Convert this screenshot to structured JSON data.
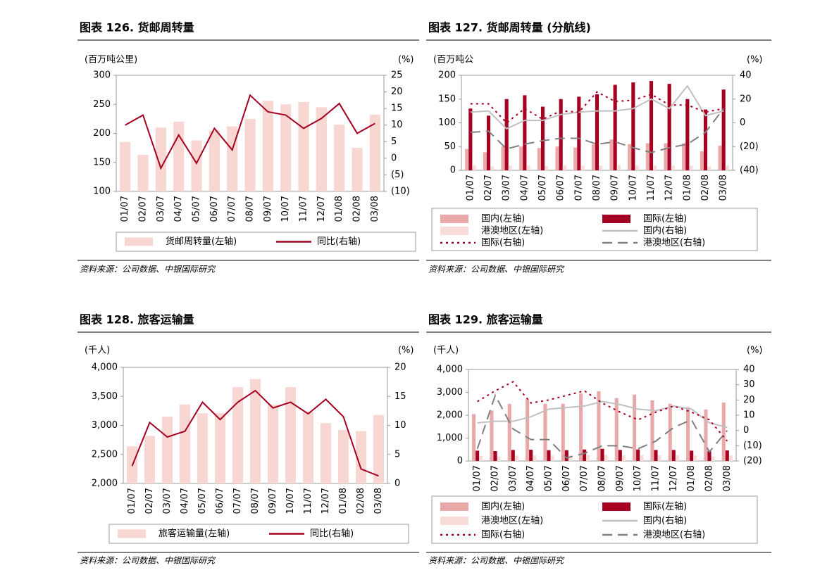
{
  "chart_data": [
    {
      "type": "bar",
      "title": "图表 126. 货邮周转量",
      "unit_left": "(百万吨公里)",
      "unit_right": "(%)",
      "source": "资料来源：公司数据、中银国际研究",
      "categories": [
        "01/07",
        "02/07",
        "03/07",
        "04/07",
        "05/07",
        "06/07",
        "07/07",
        "08/07",
        "09/07",
        "10/07",
        "11/07",
        "12/07",
        "01/08",
        "02/08",
        "03/08"
      ],
      "ylim": [
        100,
        300
      ],
      "yticks": [
        100,
        150,
        200,
        250,
        300
      ],
      "y2lim": [
        -10,
        25
      ],
      "y2ticks": [
        {
          "value": -10,
          "label": "(10)"
        },
        {
          "value": -5,
          "label": "(5)"
        },
        0,
        5,
        10,
        15,
        20,
        25
      ],
      "series": [
        {
          "name": "货邮周转量(左轴)",
          "type": "bar",
          "color": "#f8d7d3",
          "values": [
            185,
            163,
            210,
            220,
            188,
            205,
            212,
            225,
            256,
            250,
            254,
            245,
            215,
            175,
            232
          ]
        },
        {
          "name": "同比(右轴)",
          "type": "line",
          "axis": "y2",
          "color": "#a50021",
          "values": [
            10,
            13,
            -3,
            7,
            -1.5,
            9,
            2.5,
            19,
            14,
            13,
            9,
            12,
            16.5,
            7.5,
            10.5
          ]
        }
      ]
    },
    {
      "type": "bar",
      "title": "图表 127. 货邮周转量 (分航线)",
      "unit_left": "(百万吨公",
      "unit_right": "(%)",
      "source": "资料来源：公司数据、中银国际研究",
      "categories": [
        "01/07",
        "02/07",
        "03/07",
        "04/07",
        "05/07",
        "06/07",
        "07/07",
        "08/07",
        "09/07",
        "10/07",
        "11/07",
        "12/07",
        "01/08",
        "02/08",
        "03/08"
      ],
      "ylim": [
        0,
        200
      ],
      "yticks": [
        0,
        50,
        100,
        150,
        200
      ],
      "y2lim": [
        -40,
        40
      ],
      "y2ticks": [
        {
          "value": -40,
          "label": "(40)"
        },
        {
          "value": -20,
          "label": "(20)"
        },
        0,
        20,
        40
      ],
      "series": [
        {
          "name": "国内(左轴)",
          "type": "bar",
          "color": "#eaa9a9",
          "values": [
            45,
            38,
            50,
            50,
            47,
            50,
            48,
            55,
            65,
            55,
            57,
            57,
            57,
            40,
            52
          ]
        },
        {
          "name": "国际(左轴)",
          "type": "bar",
          "color": "#a50021",
          "values": [
            130,
            115,
            150,
            158,
            134,
            150,
            155,
            160,
            180,
            185,
            188,
            182,
            150,
            128,
            170
          ]
        },
        {
          "name": "港澳地区(左轴)",
          "type": "bar",
          "color": "#f8dcd8",
          "values": [
            10,
            8,
            10,
            10,
            9,
            10,
            10,
            10,
            11,
            10,
            10,
            10,
            10,
            8,
            10
          ]
        },
        {
          "name": "国内(右轴)",
          "type": "line",
          "axis": "y2",
          "color": "#c0c0c0",
          "values": [
            9,
            10,
            -5,
            2,
            2,
            7,
            9,
            10,
            10,
            12,
            20,
            12,
            31,
            6,
            10
          ]
        },
        {
          "name": "国际(右轴)",
          "type": "line",
          "axis": "y2",
          "dash": "dotted",
          "color": "#a50021",
          "values": [
            16,
            16,
            0,
            12,
            3,
            10,
            9,
            26,
            18,
            19,
            24,
            15,
            15,
            9,
            12
          ]
        },
        {
          "name": "港澳地区(右轴)",
          "type": "line",
          "axis": "y2",
          "dash": "dashed",
          "color": "#808080",
          "values": [
            -8,
            -7,
            -22,
            -18,
            -15,
            -13,
            -13,
            -18,
            -16,
            -21,
            -25,
            -21,
            -18,
            -8,
            12
          ]
        }
      ]
    },
    {
      "type": "bar",
      "title": "图表 128. 旅客运输量",
      "unit_left": "(千人)",
      "unit_right": "(%)",
      "source": "资料来源：公司数据、中银国际研究",
      "categories": [
        "01/07",
        "02/07",
        "03/07",
        "04/07",
        "05/07",
        "06/07",
        "07/07",
        "08/07",
        "09/07",
        "10/07",
        "11/07",
        "12/07",
        "01/08",
        "02/08",
        "03/08"
      ],
      "ylim": [
        2000,
        4000
      ],
      "yticks": [
        {
          "value": 2000,
          "label": "2,000"
        },
        {
          "value": 2500,
          "label": "2,500"
        },
        {
          "value": 3000,
          "label": "3,000"
        },
        {
          "value": 3500,
          "label": "3,500"
        },
        {
          "value": 4000,
          "label": "4,000"
        }
      ],
      "y2lim": [
        0,
        20
      ],
      "y2ticks": [
        0,
        5,
        10,
        15,
        20
      ],
      "series": [
        {
          "name": "旅客运输量(左轴)",
          "type": "bar",
          "color": "#f8d7d3",
          "values": [
            2640,
            2820,
            3150,
            3360,
            3210,
            3210,
            3660,
            3800,
            3360,
            3660,
            3240,
            3040,
            2920,
            2900,
            3180
          ]
        },
        {
          "name": "同比(右轴)",
          "type": "line",
          "axis": "y2",
          "color": "#a50021",
          "values": [
            3,
            10.5,
            8,
            9,
            14,
            11,
            14,
            16,
            13,
            14,
            12,
            14.5,
            11.5,
            2.5,
            1.3
          ]
        }
      ]
    },
    {
      "type": "bar",
      "title": "图表 129. 旅客运输量",
      "unit_left": "(千人)",
      "unit_right": "(%)",
      "source": "资料来源：公司数据、中银国际研究",
      "categories": [
        "01/07",
        "02/07",
        "03/07",
        "04/07",
        "05/07",
        "06/07",
        "07/07",
        "08/07",
        "09/07",
        "10/07",
        "11/07",
        "12/07",
        "01/08",
        "02/08",
        "03/08"
      ],
      "ylim": [
        0,
        4000
      ],
      "yticks": [
        0,
        {
          "value": 1000,
          "label": "1,000"
        },
        {
          "value": 2000,
          "label": "2,000"
        },
        {
          "value": 3000,
          "label": "3,000"
        },
        {
          "value": 4000,
          "label": "4,000"
        }
      ],
      "y2lim": [
        -20,
        40
      ],
      "y2ticks": [
        {
          "value": -20,
          "label": "(20)"
        },
        {
          "value": -10,
          "label": "(10)"
        },
        0,
        10,
        20,
        30,
        40
      ],
      "series": [
        {
          "name": "国内(左轴)",
          "type": "bar",
          "color": "#eaa9a9",
          "values": [
            2050,
            2200,
            2500,
            2700,
            2500,
            2500,
            2950,
            3050,
            2750,
            2900,
            2650,
            2500,
            2350,
            2250,
            2550
          ]
        },
        {
          "name": "国际(左轴)",
          "type": "bar",
          "color": "#a50021",
          "values": [
            450,
            430,
            480,
            490,
            470,
            470,
            500,
            530,
            480,
            500,
            480,
            480,
            450,
            430,
            460
          ]
        },
        {
          "name": "港澳地区(左轴)",
          "type": "bar",
          "color": "#f8dcd8",
          "values": [
            220,
            200,
            230,
            250,
            240,
            240,
            260,
            270,
            250,
            260,
            250,
            250,
            240,
            200,
            240
          ]
        },
        {
          "name": "国内(右轴)",
          "type": "line",
          "axis": "y2",
          "color": "#c0c0c0",
          "values": [
            5,
            6,
            6,
            9,
            14,
            15,
            16,
            19,
            17,
            14,
            13,
            16,
            14,
            5,
            2
          ]
        },
        {
          "name": "国际(右轴)",
          "type": "line",
          "axis": "y2",
          "dash": "dotted",
          "color": "#a50021",
          "values": [
            19,
            26,
            32,
            18,
            20,
            23,
            26,
            18,
            12,
            7,
            12,
            16,
            12,
            7,
            -7
          ]
        },
        {
          "name": "港澳地区(右轴)",
          "type": "line",
          "axis": "y2",
          "dash": "dashed",
          "color": "#808080",
          "values": [
            -12,
            23,
            1,
            -6,
            -6,
            -18,
            -15,
            -10,
            -10,
            -12,
            -7,
            2,
            7,
            -14,
            0
          ]
        }
      ]
    }
  ]
}
